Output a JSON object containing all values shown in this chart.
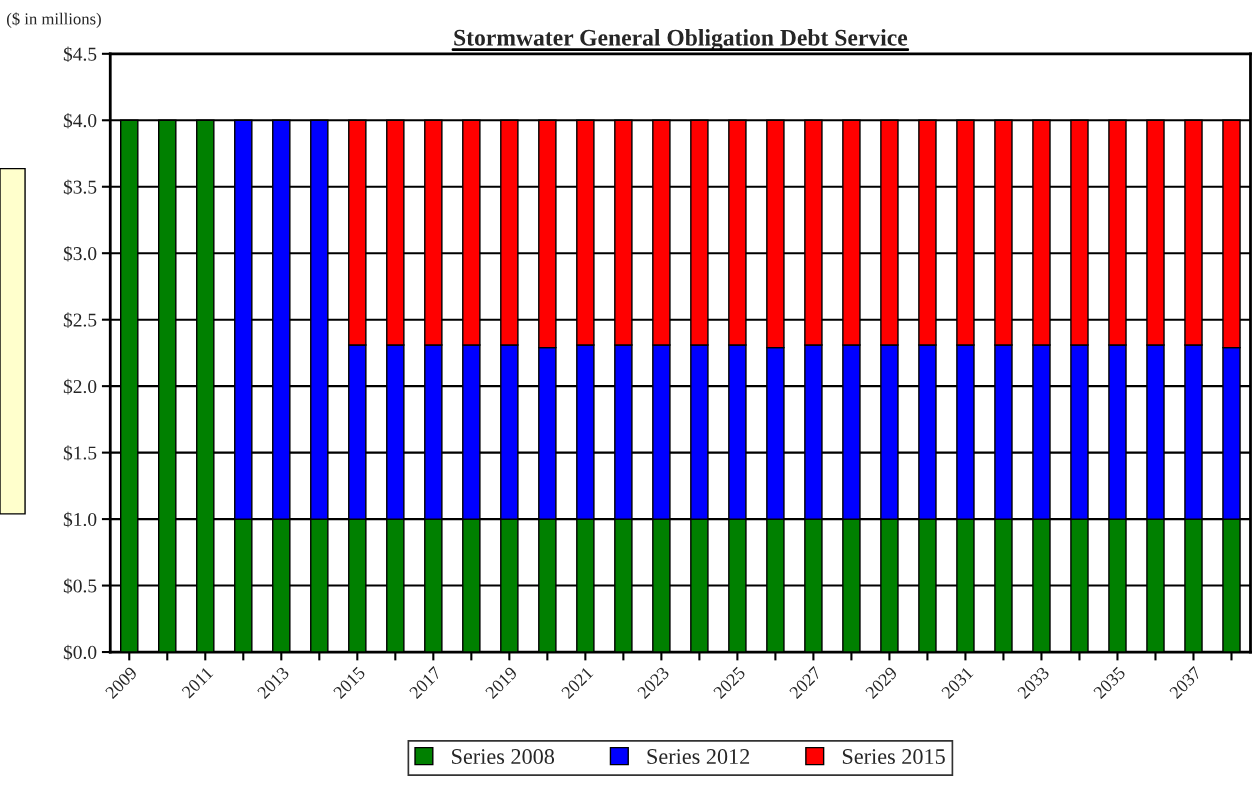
{
  "chart_data": {
    "type": "bar",
    "title": "Stormwater General Obligation Debt Service",
    "ylabel": "($ in millions)",
    "categories": [
      "2009",
      null,
      "2011",
      null,
      "2013",
      null,
      "2015",
      null,
      "2017",
      null,
      "2019",
      null,
      "2021",
      null,
      "2023",
      null,
      "2025",
      null,
      "2027",
      null,
      "2029",
      null,
      "2031",
      null,
      "2033",
      null,
      "2035",
      null,
      "2037",
      null
    ],
    "stacked": true,
    "series": [
      {
        "name": "Series 2008",
        "color": "#008000",
        "values": [
          4.0,
          4.0,
          4.0,
          1.0,
          1.0,
          1.0,
          1.0,
          1.0,
          1.0,
          1.0,
          1.0,
          1.0,
          1.0,
          1.0,
          1.0,
          1.0,
          1.0,
          1.0,
          1.0,
          1.0,
          1.0,
          1.0,
          1.0,
          1.0,
          1.0,
          1.0,
          1.0,
          1.0,
          1.0,
          1.0
        ]
      },
      {
        "name": "Series 2012",
        "color": "#0000ff",
        "values": [
          null,
          null,
          null,
          3.0,
          3.0,
          3.0,
          1.31,
          1.31,
          1.31,
          1.31,
          1.31,
          1.29,
          1.31,
          1.31,
          1.31,
          1.31,
          1.31,
          1.29,
          1.31,
          1.31,
          1.31,
          1.31,
          1.31,
          1.31,
          1.31,
          1.31,
          1.31,
          1.31,
          1.31,
          1.29
        ]
      },
      {
        "name": "Series 2015",
        "color": "#ff0000",
        "values": [
          null,
          null,
          null,
          null,
          null,
          null,
          1.69,
          1.69,
          1.69,
          1.69,
          1.69,
          1.71,
          1.69,
          1.69,
          1.69,
          1.69,
          1.69,
          1.71,
          1.69,
          1.69,
          1.69,
          1.69,
          1.69,
          1.69,
          1.69,
          1.69,
          1.69,
          1.69,
          1.69,
          1.71
        ]
      }
    ],
    "ylim": [
      0,
      4.5
    ],
    "yticks": [
      {
        "value": 0,
        "label": "$0.0"
      },
      {
        "value": 0.5,
        "label": "$0.5"
      },
      {
        "value": 1.0,
        "label": "$1.0"
      },
      {
        "value": 1.5,
        "label": "$1.5"
      },
      {
        "value": 2.0,
        "label": "$2.0"
      },
      {
        "value": 2.5,
        "label": "$2.5"
      },
      {
        "value": 3.0,
        "label": "$3.0"
      },
      {
        "value": 3.5,
        "label": "$3.5"
      },
      {
        "value": 4.0,
        "label": "$4.0"
      },
      {
        "value": 4.5,
        "label": "$4.5"
      }
    ],
    "grid": "y",
    "legend": "bottom"
  }
}
